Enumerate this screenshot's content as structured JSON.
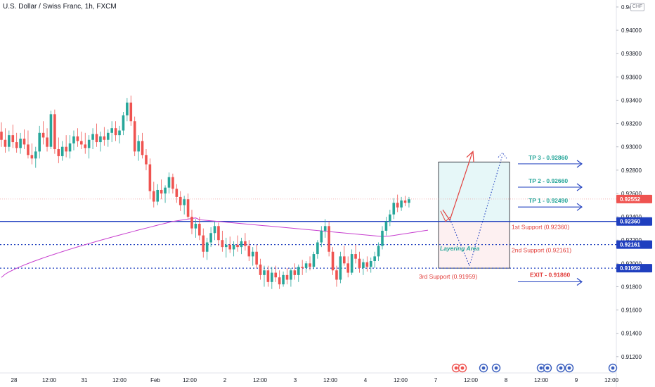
{
  "header": {
    "title": "U.S. Dollar / Swiss Franc, 1h, FXCM",
    "currency_badge": "CHF"
  },
  "colors": {
    "up": "#26a69a",
    "down": "#ef5350",
    "ma": "#c73fcf",
    "level_line": "#1f3fbf",
    "tp_text": "#26a69a",
    "support_text": "#e2403d",
    "exit_text": "#e2403d",
    "arrow_blue": "#1f3fbf",
    "last_price_bg": "#ef5350",
    "level_label_bg": "#1f3fbf",
    "price_dotted": "#ef9a9a"
  },
  "annotations": {
    "tp3": "TP 3 - 0.92860",
    "tp2": "TP 2 - 0.92660",
    "tp1": "TP 1 - 0.92490",
    "support1": "1st Support (0.92360)",
    "support2": "2nd Support (0.92161)",
    "support3": "3rd Support (0.91959)",
    "exit": "EXIT - 0.91860",
    "layering": "Layering Area"
  },
  "chart_data": {
    "type": "candlestick",
    "title": "U.S. Dollar / Swiss Franc, 1h, FXCM",
    "y_ticks": [
      "0.94200",
      "0.94000",
      "0.93800",
      "0.93600",
      "0.93400",
      "0.93200",
      "0.93000",
      "0.92800",
      "0.92600",
      "0.92400",
      "0.92200",
      "0.92000",
      "0.91800",
      "0.91600",
      "0.91400",
      "0.91200"
    ],
    "y_tick_values": [
      0.942,
      0.94,
      0.938,
      0.936,
      0.934,
      0.932,
      0.93,
      0.928,
      0.926,
      0.924,
      0.922,
      0.92,
      0.918,
      0.916,
      0.914,
      0.912
    ],
    "x_ticks": [
      "28",
      "12:00",
      "31",
      "12:00",
      "Feb",
      "12:00",
      "2",
      "12:00",
      "3",
      "12:00",
      "4",
      "12:00",
      "7",
      "12:00",
      "8",
      "12:00",
      "9",
      "12:00"
    ],
    "ylim": [
      0.9106,
      0.9426
    ],
    "price_labels": [
      {
        "text": "0.92552",
        "value": 0.92552,
        "kind": "last"
      },
      {
        "text": "0.92360",
        "value": 0.9236,
        "kind": "level"
      },
      {
        "text": "0.92161",
        "value": 0.92161,
        "kind": "level"
      },
      {
        "text": "0.91959",
        "value": 0.91959,
        "kind": "level"
      }
    ],
    "levels": [
      {
        "name": "1st Support",
        "value": 0.9236,
        "style": "solid"
      },
      {
        "name": "2nd Support",
        "value": 0.92161,
        "style": "dotted"
      },
      {
        "name": "3rd Support",
        "value": 0.91959,
        "style": "dotted"
      }
    ],
    "take_profits": [
      0.9286,
      0.9266,
      0.9249
    ],
    "exit": 0.9186,
    "ohlc": [
      [
        0.9313,
        0.9321,
        0.93,
        0.9306
      ],
      [
        0.9306,
        0.9316,
        0.9295,
        0.93
      ],
      [
        0.93,
        0.9314,
        0.9296,
        0.931
      ],
      [
        0.931,
        0.9319,
        0.9299,
        0.9304
      ],
      [
        0.9304,
        0.9312,
        0.9295,
        0.9299
      ],
      [
        0.9299,
        0.9312,
        0.9294,
        0.9307
      ],
      [
        0.9307,
        0.9315,
        0.9298,
        0.9302
      ],
      [
        0.9302,
        0.9314,
        0.929,
        0.9293
      ],
      [
        0.9293,
        0.9303,
        0.9285,
        0.929
      ],
      [
        0.929,
        0.93,
        0.9282,
        0.9296
      ],
      [
        0.9296,
        0.9318,
        0.929,
        0.9312
      ],
      [
        0.9312,
        0.9322,
        0.9302,
        0.9308
      ],
      [
        0.9308,
        0.9316,
        0.9296,
        0.93
      ],
      [
        0.93,
        0.9331,
        0.9298,
        0.9328
      ],
      [
        0.9328,
        0.9332,
        0.9294,
        0.9298
      ],
      [
        0.9298,
        0.9308,
        0.9286,
        0.9292
      ],
      [
        0.9292,
        0.9305,
        0.9288,
        0.93
      ],
      [
        0.93,
        0.931,
        0.9291,
        0.9296
      ],
      [
        0.9296,
        0.931,
        0.929,
        0.9303
      ],
      [
        0.9303,
        0.9314,
        0.9297,
        0.9309
      ],
      [
        0.9309,
        0.9316,
        0.93,
        0.9305
      ],
      [
        0.9305,
        0.9313,
        0.9298,
        0.9302
      ],
      [
        0.9302,
        0.9312,
        0.9294,
        0.9299
      ],
      [
        0.9299,
        0.931,
        0.929,
        0.9306
      ],
      [
        0.9306,
        0.9316,
        0.9298,
        0.9311
      ],
      [
        0.9311,
        0.932,
        0.93,
        0.9304
      ],
      [
        0.9304,
        0.9313,
        0.9296,
        0.9309
      ],
      [
        0.9309,
        0.9317,
        0.9301,
        0.9306
      ],
      [
        0.9306,
        0.9315,
        0.93,
        0.9312
      ],
      [
        0.9312,
        0.9322,
        0.9304,
        0.9316
      ],
      [
        0.9316,
        0.9322,
        0.9305,
        0.931
      ],
      [
        0.931,
        0.9318,
        0.9303,
        0.9314
      ],
      [
        0.9314,
        0.933,
        0.931,
        0.9327
      ],
      [
        0.9327,
        0.9342,
        0.9322,
        0.9338
      ],
      [
        0.9338,
        0.9344,
        0.9318,
        0.9322
      ],
      [
        0.9322,
        0.9326,
        0.9292,
        0.9296
      ],
      [
        0.9296,
        0.931,
        0.9288,
        0.9305
      ],
      [
        0.9305,
        0.9312,
        0.929,
        0.9293
      ],
      [
        0.9293,
        0.9298,
        0.928,
        0.9285
      ],
      [
        0.9285,
        0.929,
        0.9255,
        0.9262
      ],
      [
        0.9262,
        0.927,
        0.9248,
        0.9253
      ],
      [
        0.9253,
        0.9268,
        0.925,
        0.9263
      ],
      [
        0.9263,
        0.9272,
        0.9255,
        0.926
      ],
      [
        0.926,
        0.9267,
        0.9252,
        0.9265
      ],
      [
        0.9265,
        0.9278,
        0.926,
        0.9274
      ],
      [
        0.9274,
        0.9277,
        0.926,
        0.9264
      ],
      [
        0.9264,
        0.9268,
        0.9252,
        0.9257
      ],
      [
        0.9257,
        0.9262,
        0.9245,
        0.925
      ],
      [
        0.925,
        0.9258,
        0.9242,
        0.9255
      ],
      [
        0.9255,
        0.926,
        0.9238,
        0.924
      ],
      [
        0.924,
        0.9246,
        0.9225,
        0.923
      ],
      [
        0.923,
        0.9238,
        0.9222,
        0.9234
      ],
      [
        0.9234,
        0.924,
        0.922,
        0.9224
      ],
      [
        0.9224,
        0.923,
        0.9205,
        0.921
      ],
      [
        0.921,
        0.9222,
        0.9203,
        0.9218
      ],
      [
        0.9218,
        0.9231,
        0.9214,
        0.9226
      ],
      [
        0.9226,
        0.9236,
        0.922,
        0.9232
      ],
      [
        0.9232,
        0.9235,
        0.9215,
        0.922
      ],
      [
        0.922,
        0.9228,
        0.921,
        0.9214
      ],
      [
        0.9214,
        0.9222,
        0.9205,
        0.9216
      ],
      [
        0.9216,
        0.9223,
        0.9209,
        0.9212
      ],
      [
        0.9212,
        0.9219,
        0.9206,
        0.9216
      ],
      [
        0.9216,
        0.9224,
        0.921,
        0.9214
      ],
      [
        0.9214,
        0.9222,
        0.9208,
        0.9219
      ],
      [
        0.9219,
        0.9226,
        0.9211,
        0.9215
      ],
      [
        0.9215,
        0.922,
        0.9202,
        0.9206
      ],
      [
        0.9206,
        0.9214,
        0.9198,
        0.921
      ],
      [
        0.921,
        0.9216,
        0.9196,
        0.9199
      ],
      [
        0.9199,
        0.9204,
        0.9186,
        0.919
      ],
      [
        0.919,
        0.9198,
        0.918,
        0.9194
      ],
      [
        0.9194,
        0.9198,
        0.918,
        0.9184
      ],
      [
        0.9184,
        0.9197,
        0.9178,
        0.9192
      ],
      [
        0.9192,
        0.9198,
        0.9184,
        0.9188
      ],
      [
        0.9188,
        0.9194,
        0.9178,
        0.9182
      ],
      [
        0.9182,
        0.9193,
        0.918,
        0.919
      ],
      [
        0.919,
        0.9196,
        0.9182,
        0.9186
      ],
      [
        0.9186,
        0.9196,
        0.918,
        0.9194
      ],
      [
        0.9194,
        0.92,
        0.9186,
        0.919
      ],
      [
        0.919,
        0.9199,
        0.9184,
        0.9197
      ],
      [
        0.9197,
        0.9203,
        0.919,
        0.9196
      ],
      [
        0.9196,
        0.9202,
        0.9192,
        0.92
      ],
      [
        0.92,
        0.9206,
        0.9194,
        0.9197
      ],
      [
        0.9197,
        0.921,
        0.9195,
        0.9208
      ],
      [
        0.9208,
        0.922,
        0.9204,
        0.9218
      ],
      [
        0.9218,
        0.9232,
        0.9214,
        0.9228
      ],
      [
        0.9228,
        0.9238,
        0.9222,
        0.9232
      ],
      [
        0.9232,
        0.9236,
        0.9206,
        0.921
      ],
      [
        0.921,
        0.9214,
        0.919,
        0.9194
      ],
      [
        0.9194,
        0.9198,
        0.918,
        0.9186
      ],
      [
        0.9186,
        0.921,
        0.9183,
        0.9206
      ],
      [
        0.9206,
        0.9215,
        0.9198,
        0.92
      ],
      [
        0.92,
        0.9206,
        0.9188,
        0.9192
      ],
      [
        0.9192,
        0.9212,
        0.919,
        0.9208
      ],
      [
        0.9208,
        0.9216,
        0.92,
        0.9204
      ],
      [
        0.9204,
        0.921,
        0.9192,
        0.9196
      ],
      [
        0.9196,
        0.9204,
        0.919,
        0.9201
      ],
      [
        0.9201,
        0.9206,
        0.9193,
        0.9197
      ],
      [
        0.9197,
        0.9205,
        0.9192,
        0.9202
      ],
      [
        0.9202,
        0.921,
        0.9196,
        0.9206
      ],
      [
        0.9206,
        0.9218,
        0.9202,
        0.9215
      ],
      [
        0.9215,
        0.9232,
        0.9212,
        0.9228
      ],
      [
        0.9228,
        0.924,
        0.9224,
        0.9236
      ],
      [
        0.9236,
        0.9246,
        0.9232,
        0.9242
      ],
      [
        0.9242,
        0.9256,
        0.9238,
        0.9252
      ],
      [
        0.9252,
        0.9259,
        0.9244,
        0.9248
      ],
      [
        0.9248,
        0.9257,
        0.9245,
        0.9254
      ],
      [
        0.9254,
        0.9258,
        0.9249,
        0.9252
      ],
      [
        0.9252,
        0.9257,
        0.9248,
        0.9255
      ]
    ]
  }
}
